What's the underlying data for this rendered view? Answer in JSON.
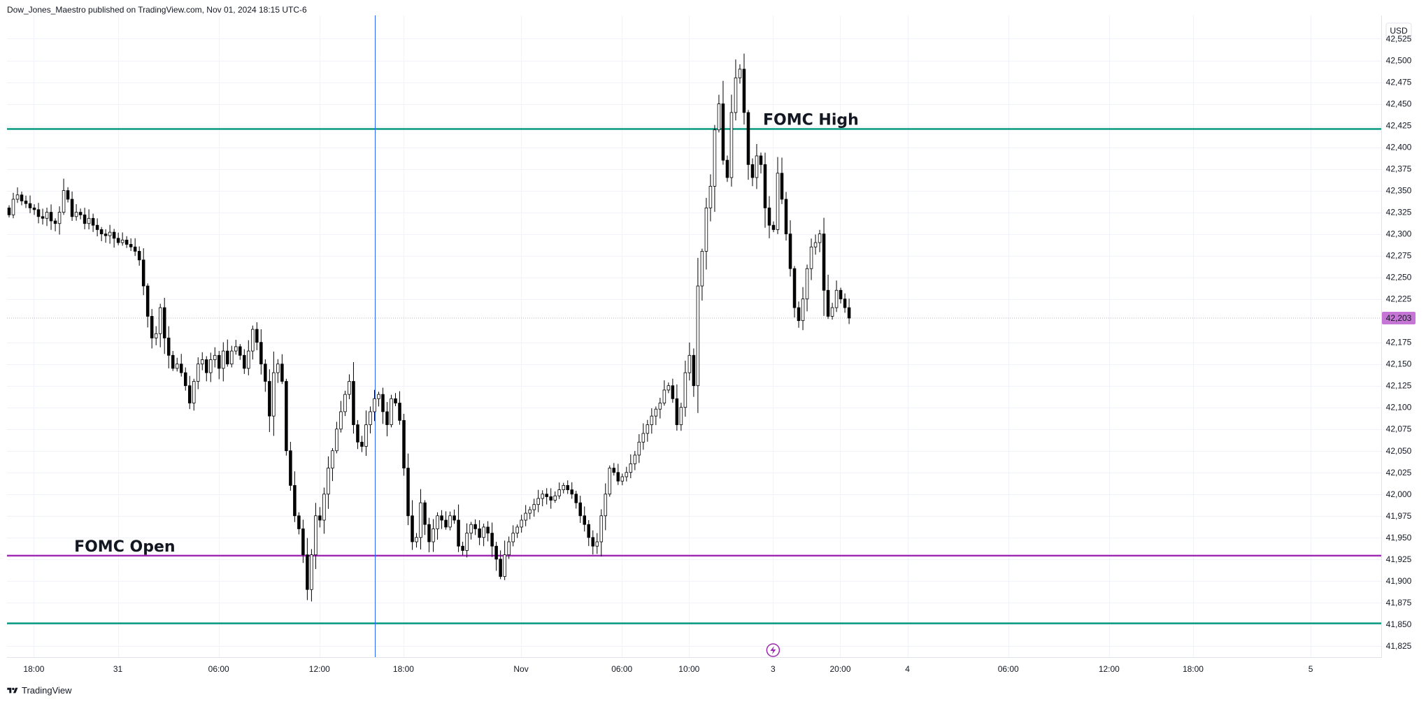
{
  "header": {
    "publisher_text": "Dow_Jones_Maestro published on TradingView.com, Nov 01, 2024 18:15 UTC-6"
  },
  "footer": {
    "brand": "TradingView"
  },
  "chart_data": {
    "type": "candlestick",
    "currency_label": "USD",
    "last_price_label": "42,203",
    "last_price": 42203,
    "ylim": [
      41812,
      42552
    ],
    "y_ticks": [
      {
        "v": 42525,
        "label": "42,525"
      },
      {
        "v": 42500,
        "label": "42,500"
      },
      {
        "v": 42475,
        "label": "42,475"
      },
      {
        "v": 42450,
        "label": "42,450"
      },
      {
        "v": 42425,
        "label": "42,425"
      },
      {
        "v": 42400,
        "label": "42,400"
      },
      {
        "v": 42375,
        "label": "42,375"
      },
      {
        "v": 42350,
        "label": "42,350"
      },
      {
        "v": 42325,
        "label": "42,325"
      },
      {
        "v": 42300,
        "label": "42,300"
      },
      {
        "v": 42275,
        "label": "42,275"
      },
      {
        "v": 42250,
        "label": "42,250"
      },
      {
        "v": 42225,
        "label": "42,225"
      },
      {
        "v": 42175,
        "label": "42,175"
      },
      {
        "v": 42150,
        "label": "42,150"
      },
      {
        "v": 42125,
        "label": "42,125"
      },
      {
        "v": 42100,
        "label": "42,100"
      },
      {
        "v": 42075,
        "label": "42,075"
      },
      {
        "v": 42050,
        "label": "42,050"
      },
      {
        "v": 42025,
        "label": "42,025"
      },
      {
        "v": 42000,
        "label": "42,000"
      },
      {
        "v": 41975,
        "label": "41,975"
      },
      {
        "v": 41950,
        "label": "41,950"
      },
      {
        "v": 41925,
        "label": "41,925"
      },
      {
        "v": 41900,
        "label": "41,900"
      },
      {
        "v": 41875,
        "label": "41,875"
      },
      {
        "v": 41850,
        "label": "41,850"
      },
      {
        "v": 41825,
        "label": "41,825"
      }
    ],
    "x_range_hours": [
      -6.6,
      75.2
    ],
    "x_ticks": [
      {
        "h": -5,
        "label": "18:00"
      },
      {
        "h": 0,
        "label": "31"
      },
      {
        "h": 6,
        "label": "06:00"
      },
      {
        "h": 12,
        "label": "12:00"
      },
      {
        "h": 17,
        "label": "18:00"
      },
      {
        "h": 24,
        "label": "Nov"
      },
      {
        "h": 30,
        "label": "06:00"
      },
      {
        "h": 34,
        "label": "10:00"
      },
      {
        "h": 39,
        "label": "3"
      },
      {
        "h": 43,
        "label": "20:00"
      },
      {
        "h": 47,
        "label": "4"
      },
      {
        "h": 53,
        "label": "06:00"
      },
      {
        "h": 59,
        "label": "12:00"
      },
      {
        "h": 64,
        "label": "18:00"
      },
      {
        "h": 71,
        "label": "5"
      }
    ],
    "vertical_marker_hour": 15.3,
    "event_marker_hour": 39,
    "levels": [
      {
        "name": "FOMC High",
        "value": 42421,
        "color": "#089981",
        "label_hour": 38.4,
        "label_side": "above"
      },
      {
        "name": "FOMC Open",
        "value": 41929,
        "color": "#9c27b0",
        "label_hour": -2.6,
        "label_side": "above"
      },
      {
        "name": "",
        "value": 41851,
        "color": "#089981",
        "label_hour": null,
        "label_side": "above"
      }
    ],
    "colors": {
      "candle_up_fill": "#ffffff",
      "candle_down_fill": "#000000",
      "candle_outline": "#000000",
      "last_price_tag": "#c576d4",
      "marker_line": "#2962ff",
      "event_icon": "#9c27b0",
      "grid": "#f0f3fa"
    },
    "candle_interval_hours": 0.25,
    "candles_closes": [
      42322,
      42340,
      42345,
      42338,
      42335,
      42330,
      42328,
      42320,
      42318,
      42325,
      42315,
      42312,
      42325,
      42350,
      42340,
      42320,
      42325,
      42322,
      42312,
      42318,
      42310,
      42305,
      42300,
      42298,
      42302,
      42295,
      42290,
      42293,
      42288,
      42285,
      42280,
      42270,
      42240,
      42205,
      42180,
      42185,
      42215,
      42180,
      42160,
      42145,
      42150,
      42140,
      42125,
      42105,
      42130,
      42150,
      42155,
      42140,
      42155,
      42160,
      42145,
      42165,
      42150,
      42165,
      42170,
      42160,
      42145,
      42165,
      42190,
      42175,
      42150,
      42130,
      42090,
      42140,
      42150,
      42130,
      42050,
      42010,
      41975,
      41960,
      41930,
      41890,
      41930,
      41975,
      41970,
      42000,
      42030,
      42050,
      42075,
      42095,
      42115,
      42130,
      42080,
      42060,
      42055,
      42080,
      42095,
      42110,
      42115,
      42095,
      42080,
      42110,
      42105,
      42085,
      42030,
      41975,
      41945,
      41950,
      41990,
      41965,
      41945,
      41960,
      41975,
      41970,
      41962,
      41975,
      41970,
      41940,
      41935,
      41955,
      41965,
      41960,
      41950,
      41962,
      41955,
      41940,
      41925,
      41905,
      41930,
      41945,
      41955,
      41962,
      41970,
      41978,
      41982,
      41988,
      41995,
      42000,
      41997,
      41993,
      41998,
      42005,
      42010,
      42005,
      42000,
      41990,
      41975,
      41965,
      41950,
      41940,
      41945,
      41975,
      42000,
      42030,
      42025,
      42015,
      42020,
      42025,
      42035,
      42045,
      42060,
      42070,
      42080,
      42090,
      42098,
      42105,
      42120,
      42125,
      42110,
      42080,
      42100,
      42140,
      42160,
      42125,
      42240,
      42280,
      42330,
      42355,
      42420,
      42450,
      42385,
      42365,
      42440,
      42480,
      42490,
      42440,
      42380,
      42365,
      42390,
      42380,
      42330,
      42310,
      42305,
      42370,
      42340,
      42300,
      42260,
      42215,
      42200,
      42225,
      42260,
      42285,
      42290,
      42300,
      42235,
      42205,
      42215,
      42235,
      42225,
      42215,
      42203
    ]
  }
}
